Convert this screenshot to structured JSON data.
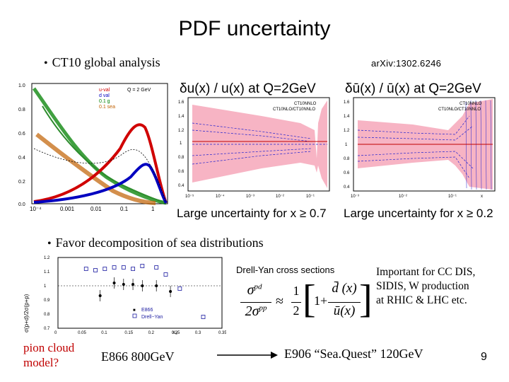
{
  "slide": {
    "title": "PDF uncertainty",
    "bullet1": "CT10 global analysis",
    "reference": "arXiv:1302.6246",
    "bullet2": "Favor decomposition of sea distributions",
    "bullet_glyph": "•",
    "page_number": "9"
  },
  "pdf_plot": {
    "ymax_label": "1.0",
    "legend": [
      "u-val",
      "d val",
      "0.1 g",
      "0.1 sea"
    ],
    "scale_label": "Q = 2 GeV",
    "x_ticks": [
      "10⁻⁴",
      "0.001",
      "0.01",
      "0.1",
      "1"
    ],
    "y_ticks": [
      "0.8",
      "0.6",
      "0.4",
      "0.2",
      "0.0"
    ],
    "colors": {
      "u_val": "#d00000",
      "d_val": "#0000c0",
      "gluon": "#008000",
      "sea": "#c06000"
    }
  },
  "du_plot": {
    "title": "δu(x) / u(x) at Q=2GeV",
    "legend": [
      "CT10NNLO",
      "CT10NLO/CT10NNLO"
    ],
    "y_ticks": [
      "1.6",
      "1.4",
      "1.2",
      "1",
      "0.8",
      "0.6",
      "0.4"
    ],
    "x_ticks": [
      "10⁻⁵",
      "10⁻⁴",
      "10⁻³",
      "10⁻²",
      "10⁻¹"
    ],
    "caption": "Large uncertainty for x ≥ 0.7",
    "band_color": "#f7b4c4"
  },
  "dubar_plot": {
    "title": "δū(x) / ū(x) at Q=2GeV",
    "legend": [
      "CT10NNLO",
      "CT10NLO/CT10NNLO"
    ],
    "y_ticks": [
      "1.6",
      "1.4",
      "1.2",
      "1",
      "0.8",
      "0.6",
      "0.4"
    ],
    "x_ticks": [
      "10⁻³",
      "10⁻²",
      "10⁻¹"
    ],
    "x_axis_label": "x",
    "caption": "Large uncertainty for x ≥ 0.2",
    "band_color": "#f7b4c4"
  },
  "e866_plot": {
    "y_axis_label": "σ(p+d)/2σ(p+p)",
    "x_axis_label": "x₂",
    "y_ticks": [
      "1.2",
      "1.1",
      "1",
      "0.9",
      "0.8",
      "0.7"
    ],
    "x_ticks": [
      "0",
      "0.05",
      "0.1",
      "0.15",
      "0.2",
      "0.25",
      "0.3",
      "0.35"
    ],
    "legend": [
      "E866",
      "Drell−Yan"
    ],
    "legend_glyph": "■",
    "chart_data": {
      "type": "scatter",
      "xlim": [
        0,
        0.35
      ],
      "ylim": [
        0.7,
        1.2
      ],
      "series": [
        {
          "name": "E866",
          "x": [
            0.09,
            0.12,
            0.14,
            0.16,
            0.18,
            0.21,
            0.24
          ],
          "y": [
            0.93,
            1.02,
            1.01,
            1.01,
            1.0,
            1.0,
            0.96
          ]
        },
        {
          "name": "Drell−Yan",
          "x": [
            0.06,
            0.08,
            0.1,
            0.12,
            0.14,
            0.16,
            0.18,
            0.21,
            0.23,
            0.26,
            0.31
          ],
          "y": [
            1.12,
            1.11,
            1.12,
            1.13,
            1.13,
            1.12,
            1.14,
            1.13,
            1.08,
            0.98,
            0.78
          ]
        }
      ]
    }
  },
  "formula": {
    "lhs_num": "σ",
    "lhs_num_sup": "pd",
    "lhs_den": "2σ",
    "lhs_den_sup": "pp",
    "approx": "≈",
    "half_num": "1",
    "half_den": "2",
    "one": "1+",
    "rhs_num": "d̄ (x)",
    "rhs_den": "ū(x)",
    "bracket_left": "[",
    "bracket_right": "]"
  },
  "drell_yan_label": "Drell-Yan cross sections",
  "important_text": [
    "Important for CC DIS,",
    "SIDIS, W production",
    "at RHIC & LHC etc."
  ],
  "pion_cloud": [
    "pion cloud",
    "model?"
  ],
  "e866_label": "E866 800GeV",
  "e906_label": "E906 “Sea.Quest”  120GeV"
}
